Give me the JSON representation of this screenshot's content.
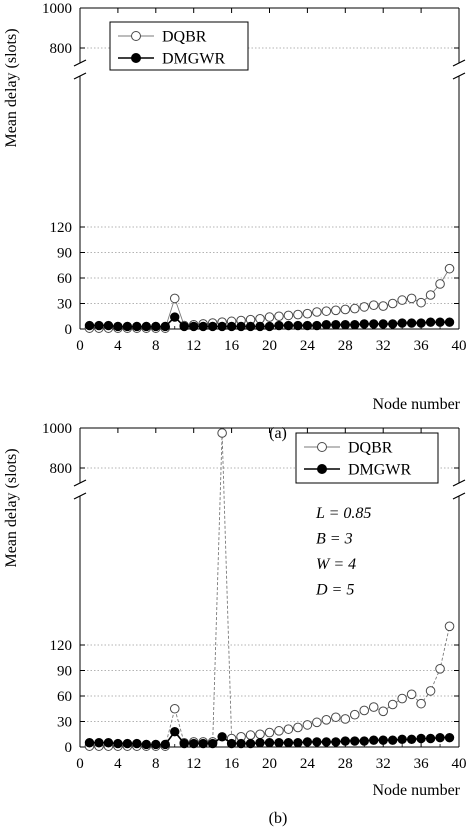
{
  "chart_data": [
    {
      "type": "line",
      "caption": "(a)",
      "xlabel": "Node number",
      "ylabel": "Mean delay (slots)",
      "xlim": [
        0,
        40
      ],
      "x_ticks": [
        "0",
        "4",
        "8",
        "12",
        "16",
        "20",
        "24",
        "28",
        "32",
        "36",
        "40"
      ],
      "y_ticks_lower": [
        "0",
        "30",
        "60",
        "90",
        "120"
      ],
      "y_ticks_upper": [
        "800",
        "1000"
      ],
      "ylim_lower": [
        0,
        150
      ],
      "ylim_upper": [
        700,
        1000
      ],
      "axis_break": true,
      "grid": "horizontal dotted",
      "legend_position": "top-left",
      "annotations": [],
      "series": [
        {
          "name": "DQBR",
          "marker": "open-circle",
          "x": [
            1,
            2,
            3,
            4,
            5,
            6,
            7,
            8,
            9,
            10,
            11,
            12,
            13,
            14,
            15,
            16,
            17,
            18,
            19,
            20,
            21,
            22,
            23,
            24,
            25,
            26,
            27,
            28,
            29,
            30,
            31,
            32,
            33,
            34,
            35,
            36,
            37,
            38,
            39
          ],
          "values": [
            1,
            1,
            1,
            1,
            1,
            1,
            1,
            1,
            1,
            36,
            4,
            5,
            6,
            7,
            8,
            9,
            10,
            11,
            12,
            14,
            15,
            16,
            17,
            18,
            20,
            21,
            22,
            23,
            24,
            26,
            28,
            27,
            30,
            34,
            36,
            31,
            40,
            53,
            71
          ]
        },
        {
          "name": "DMGWR",
          "marker": "filled-circle",
          "x": [
            1,
            2,
            3,
            4,
            5,
            6,
            7,
            8,
            9,
            10,
            11,
            12,
            13,
            14,
            15,
            16,
            17,
            18,
            19,
            20,
            21,
            22,
            23,
            24,
            25,
            26,
            27,
            28,
            29,
            30,
            31,
            32,
            33,
            34,
            35,
            36,
            37,
            38,
            39
          ],
          "values": [
            4,
            4,
            4,
            3,
            3,
            3,
            3,
            3,
            3,
            14,
            3,
            3,
            3,
            3,
            3,
            3,
            3,
            3,
            3,
            3,
            4,
            4,
            4,
            4,
            4,
            5,
            5,
            5,
            5,
            6,
            6,
            6,
            6,
            7,
            7,
            7,
            8,
            8,
            8
          ]
        }
      ]
    },
    {
      "type": "line",
      "caption": "(b)",
      "xlabel": "Node number",
      "ylabel": "Mean delay (slots)",
      "xlim": [
        0,
        40
      ],
      "x_ticks": [
        "0",
        "4",
        "8",
        "12",
        "16",
        "20",
        "24",
        "28",
        "32",
        "36",
        "40"
      ],
      "y_ticks_lower": [
        "0",
        "30",
        "60",
        "90",
        "120"
      ],
      "y_ticks_upper": [
        "800",
        "1000"
      ],
      "ylim_lower": [
        0,
        150
      ],
      "ylim_upper": [
        700,
        1000
      ],
      "axis_break": true,
      "grid": "horizontal dotted",
      "legend_position": "top-right",
      "annotations": [
        "L = 0.85",
        "B = 3",
        "W = 4",
        "D = 5"
      ],
      "series": [
        {
          "name": "DQBR",
          "marker": "open-circle",
          "x": [
            1,
            2,
            3,
            4,
            5,
            6,
            7,
            8,
            9,
            10,
            11,
            12,
            13,
            14,
            15,
            16,
            17,
            18,
            19,
            20,
            21,
            22,
            23,
            24,
            25,
            26,
            27,
            28,
            29,
            30,
            31,
            32,
            33,
            34,
            35,
            36,
            37,
            38,
            39
          ],
          "values": [
            1,
            1,
            1,
            1,
            1,
            1,
            1,
            1,
            1,
            45,
            5,
            6,
            6,
            6,
            975,
            10,
            12,
            14,
            15,
            17,
            19,
            21,
            23,
            26,
            29,
            32,
            35,
            33,
            38,
            43,
            47,
            42,
            50,
            57,
            62,
            51,
            66,
            92,
            142
          ]
        },
        {
          "name": "DMGWR",
          "marker": "filled-circle",
          "x": [
            1,
            2,
            3,
            4,
            5,
            6,
            7,
            8,
            9,
            10,
            11,
            12,
            13,
            14,
            15,
            16,
            17,
            18,
            19,
            20,
            21,
            22,
            23,
            24,
            25,
            26,
            27,
            28,
            29,
            30,
            31,
            32,
            33,
            34,
            35,
            36,
            37,
            38,
            39
          ],
          "values": [
            5,
            5,
            5,
            4,
            4,
            4,
            3,
            3,
            3,
            18,
            4,
            4,
            4,
            4,
            12,
            4,
            4,
            4,
            5,
            5,
            5,
            5,
            5,
            6,
            6,
            6,
            6,
            7,
            7,
            7,
            8,
            8,
            8,
            9,
            9,
            10,
            10,
            11,
            11
          ]
        }
      ]
    }
  ]
}
